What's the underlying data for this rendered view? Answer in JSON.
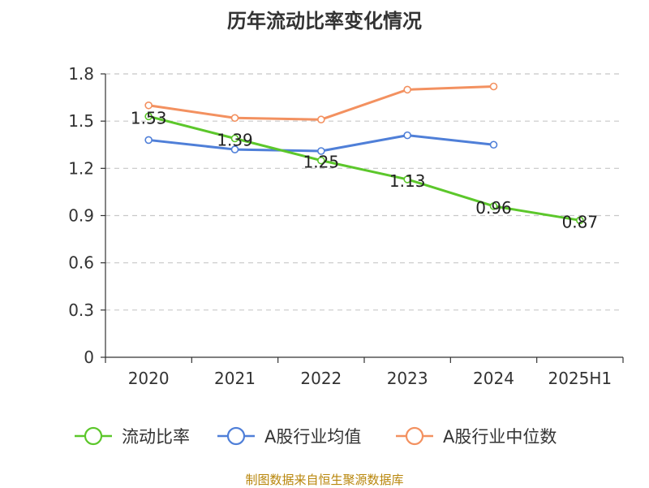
{
  "chart_data": {
    "type": "line",
    "title": "历年流动比率变化情况",
    "xlabel": "",
    "ylabel": "",
    "categories": [
      "2020",
      "2021",
      "2022",
      "2023",
      "2024",
      "2025H1"
    ],
    "ylim": [
      0,
      1.8
    ],
    "yticks": [
      "0",
      "0.3",
      "0.6",
      "0.9",
      "1.2",
      "1.5",
      "1.8"
    ],
    "ytick_values": [
      0,
      0.3,
      0.6,
      0.9,
      1.2,
      1.5,
      1.8
    ],
    "grid": true,
    "legend_position": "bottom",
    "series": [
      {
        "name": "流动比率",
        "color": "#5cc72b",
        "values": [
          1.53,
          1.39,
          1.25,
          1.13,
          0.96,
          0.87
        ],
        "labels": [
          "1.53",
          "1.39",
          "1.25",
          "1.13",
          "0.96",
          "0.87"
        ],
        "show_labels": true
      },
      {
        "name": "A股行业均值",
        "color": "#4f7fd8",
        "values": [
          1.38,
          1.32,
          1.31,
          1.41,
          1.35,
          null
        ],
        "show_labels": false
      },
      {
        "name": "A股行业中位数",
        "color": "#f39160",
        "values": [
          1.6,
          1.52,
          1.51,
          1.7,
          1.72,
          null
        ],
        "show_labels": false
      }
    ]
  },
  "footer": {
    "source": "制图数据来自恒生聚源数据库"
  }
}
